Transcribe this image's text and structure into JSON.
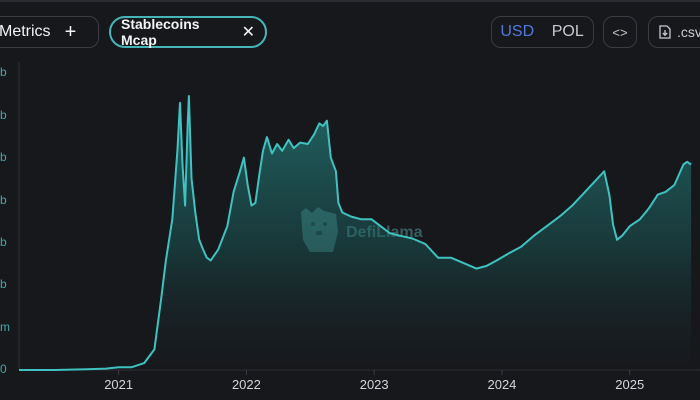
{
  "toolbar": {
    "metrics_label": "l Metrics",
    "add_symbol": "+",
    "active_metric": "Stablecoins Mcap",
    "remove_symbol": "✕",
    "currency_options": [
      "USD",
      "POL"
    ],
    "selected_currency": "USD",
    "embed_symbol": "<>",
    "csv_label": ".csv"
  },
  "watermark": {
    "text": "DefiLlama"
  },
  "colors": {
    "line": "#3fc2c0",
    "accent": "#4f7ad9",
    "background": "#17181c"
  },
  "chart_data": {
    "type": "area",
    "series": [
      {
        "values": []
      }
    ],
    "y_tick_labels": [
      "b",
      "b",
      "b",
      "b",
      "b",
      "b",
      "m",
      "0"
    ],
    "x_tick_labels": [
      "2021",
      "2022",
      "2023",
      "2024",
      "2025"
    ],
    "x_ticks_years": [
      2021,
      2022,
      2023,
      2024,
      2025
    ],
    "points": [
      [
        2020.22,
        0.0
      ],
      [
        2020.5,
        0.0
      ],
      [
        2020.75,
        0.005
      ],
      [
        2020.9,
        0.01
      ],
      [
        2021.0,
        0.02
      ],
      [
        2021.1,
        0.02
      ],
      [
        2021.2,
        0.05
      ],
      [
        2021.28,
        0.15
      ],
      [
        2021.33,
        0.5
      ],
      [
        2021.37,
        0.8
      ],
      [
        2021.42,
        1.1
      ],
      [
        2021.46,
        1.6
      ],
      [
        2021.48,
        1.95
      ],
      [
        2021.5,
        1.5
      ],
      [
        2021.52,
        1.2
      ],
      [
        2021.54,
        1.8
      ],
      [
        2021.55,
        2.0
      ],
      [
        2021.57,
        1.4
      ],
      [
        2021.6,
        1.15
      ],
      [
        2021.63,
        0.95
      ],
      [
        2021.66,
        0.88
      ],
      [
        2021.69,
        0.82
      ],
      [
        2021.72,
        0.8
      ],
      [
        2021.78,
        0.88
      ],
      [
        2021.85,
        1.05
      ],
      [
        2021.9,
        1.3
      ],
      [
        2021.95,
        1.45
      ],
      [
        2021.98,
        1.55
      ],
      [
        2022.01,
        1.35
      ],
      [
        2022.04,
        1.2
      ],
      [
        2022.07,
        1.22
      ],
      [
        2022.1,
        1.42
      ],
      [
        2022.13,
        1.6
      ],
      [
        2022.16,
        1.7
      ],
      [
        2022.2,
        1.58
      ],
      [
        2022.24,
        1.65
      ],
      [
        2022.28,
        1.6
      ],
      [
        2022.33,
        1.68
      ],
      [
        2022.37,
        1.62
      ],
      [
        2022.42,
        1.66
      ],
      [
        2022.48,
        1.65
      ],
      [
        2022.53,
        1.72
      ],
      [
        2022.57,
        1.8
      ],
      [
        2022.6,
        1.78
      ],
      [
        2022.63,
        1.82
      ],
      [
        2022.66,
        1.55
      ],
      [
        2022.7,
        1.45
      ],
      [
        2022.72,
        1.22
      ],
      [
        2022.75,
        1.15
      ],
      [
        2022.82,
        1.12
      ],
      [
        2022.9,
        1.1
      ],
      [
        2022.98,
        1.1
      ],
      [
        2023.05,
        1.05
      ],
      [
        2023.12,
        1.0
      ],
      [
        2023.2,
        0.98
      ],
      [
        2023.3,
        0.96
      ],
      [
        2023.4,
        0.92
      ],
      [
        2023.5,
        0.82
      ],
      [
        2023.6,
        0.82
      ],
      [
        2023.7,
        0.78
      ],
      [
        2023.8,
        0.74
      ],
      [
        2023.88,
        0.76
      ],
      [
        2023.96,
        0.8
      ],
      [
        2024.05,
        0.85
      ],
      [
        2024.15,
        0.9
      ],
      [
        2024.25,
        0.98
      ],
      [
        2024.35,
        1.05
      ],
      [
        2024.45,
        1.12
      ],
      [
        2024.55,
        1.2
      ],
      [
        2024.65,
        1.3
      ],
      [
        2024.75,
        1.4
      ],
      [
        2024.8,
        1.45
      ],
      [
        2024.84,
        1.28
      ],
      [
        2024.87,
        1.06
      ],
      [
        2024.9,
        0.95
      ],
      [
        2024.94,
        0.98
      ],
      [
        2025.0,
        1.05
      ],
      [
        2025.08,
        1.1
      ],
      [
        2025.15,
        1.18
      ],
      [
        2025.22,
        1.28
      ],
      [
        2025.28,
        1.3
      ],
      [
        2025.35,
        1.35
      ],
      [
        2025.42,
        1.5
      ],
      [
        2025.45,
        1.52
      ],
      [
        2025.48,
        1.5
      ]
    ]
  }
}
